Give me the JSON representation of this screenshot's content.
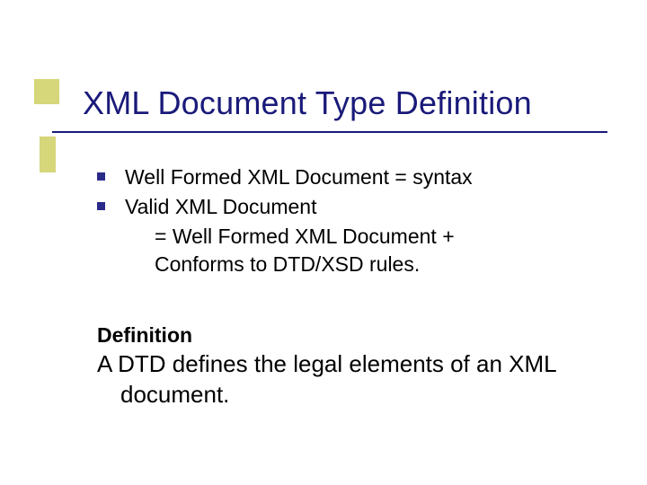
{
  "slide": {
    "title": "XML Document Type Definition",
    "bullets": [
      {
        "text": "Well Formed XML Document = syntax"
      },
      {
        "text": "Valid XML Document"
      }
    ],
    "sublines": [
      "= Well Formed XML Document +",
      "Conforms to DTD/XSD rules."
    ],
    "definition_label": "Definition",
    "definition_line1": "A DTD defines the legal elements of an XML",
    "definition_line2": "document."
  },
  "style": {
    "accent_color": "#d6d67a",
    "title_color": "#1a1a7a",
    "underline_color": "#1a1a7a",
    "bullet_color": "#2a2a8a",
    "background": "#ffffff",
    "title_fontsize": 36,
    "body_fontsize": 23,
    "def_fontsize": 26
  }
}
